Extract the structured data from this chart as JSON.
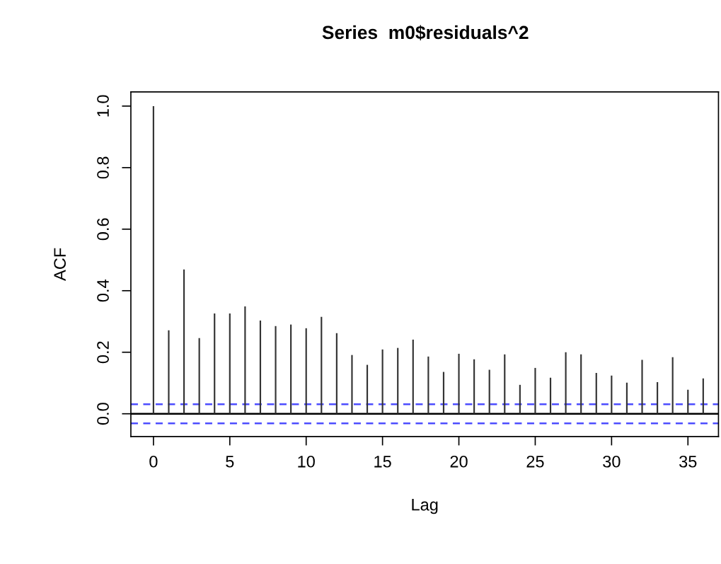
{
  "chart_data": {
    "type": "bar",
    "title": "Series  m0$residuals^2",
    "xlabel": "Lag",
    "ylabel": "ACF",
    "x": [
      0,
      1,
      2,
      3,
      4,
      5,
      6,
      7,
      8,
      9,
      10,
      11,
      12,
      13,
      14,
      15,
      16,
      17,
      18,
      19,
      20,
      21,
      22,
      23,
      24,
      25,
      26,
      27,
      28,
      29,
      30,
      31,
      32,
      33,
      34,
      35,
      36
    ],
    "values": [
      1.0,
      0.271,
      0.469,
      0.246,
      0.326,
      0.326,
      0.349,
      0.303,
      0.285,
      0.29,
      0.278,
      0.315,
      0.262,
      0.191,
      0.159,
      0.209,
      0.214,
      0.241,
      0.186,
      0.136,
      0.195,
      0.177,
      0.143,
      0.193,
      0.094,
      0.149,
      0.117,
      0.2,
      0.193,
      0.133,
      0.124,
      0.101,
      0.175,
      0.103,
      0.184,
      0.078,
      0.115
    ],
    "color": "#333333",
    "xlim": [
      -1.48,
      37.0
    ],
    "ylim": [
      -0.074,
      1.046
    ],
    "xticks": [
      0,
      5,
      10,
      15,
      20,
      25,
      30,
      35
    ],
    "yticks": [
      {
        "value": 0,
        "label": "0.0"
      },
      {
        "value": 0.2,
        "label": "0.2"
      },
      {
        "value": 0.4,
        "label": "0.4"
      },
      {
        "value": 0.6,
        "label": "0.6"
      },
      {
        "value": 0.8,
        "label": "0.8"
      },
      {
        "value": 1.0,
        "label": "1.0"
      }
    ],
    "ref_lines": [
      {
        "axis": "y",
        "value": 0,
        "color": "#000000",
        "line_style": "solid"
      },
      {
        "axis": "y",
        "value": 0.031,
        "color": "#4d4dff",
        "line_style": "dashed"
      },
      {
        "axis": "y",
        "value": -0.031,
        "color": "#4d4dff",
        "line_style": "dashed"
      }
    ],
    "grid": false,
    "legend": false
  }
}
